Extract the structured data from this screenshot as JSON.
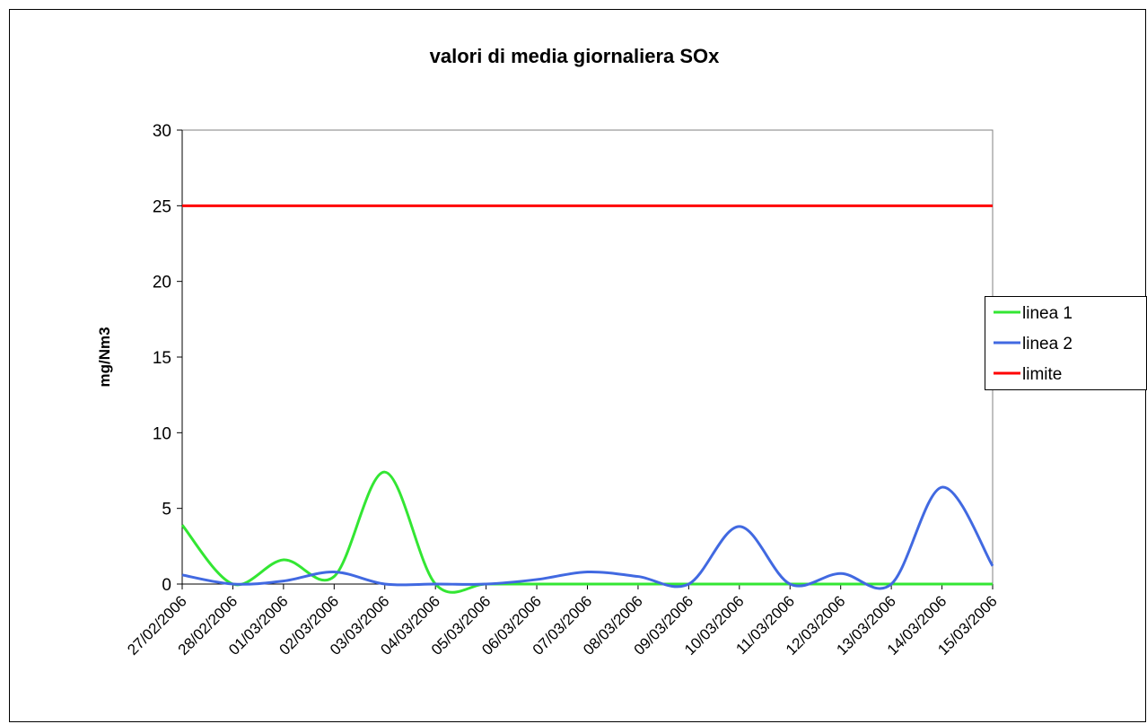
{
  "chart_data": {
    "type": "line",
    "title": "valori di media giornaliera  SOx",
    "y_label": "mg/Nm3",
    "categories": [
      "27/02/2006",
      "28/02/2006",
      "01/03/2006",
      "02/03/2006",
      "03/03/2006",
      "04/03/2006",
      "05/03/2006",
      "06/03/2006",
      "07/03/2006",
      "08/03/2006",
      "09/03/2006",
      "10/03/2006",
      "11/03/2006",
      "12/03/2006",
      "13/03/2006",
      "14/03/2006",
      "15/03/2006"
    ],
    "series": [
      {
        "name": "linea 1",
        "color": "#33e633",
        "values": [
          3.9,
          0,
          1.6,
          0.5,
          7.4,
          0,
          0,
          0,
          0,
          0,
          0,
          0,
          0,
          0,
          0,
          0,
          0
        ]
      },
      {
        "name": "linea 2",
        "color": "#4169e1",
        "values": [
          0.6,
          0,
          0.2,
          0.8,
          0,
          0,
          0,
          0.3,
          0.8,
          0.5,
          0,
          3.8,
          0,
          0.7,
          0,
          6.4,
          1.2
        ]
      },
      {
        "name": "limite",
        "color": "#ff0000",
        "values": [
          25,
          25,
          25,
          25,
          25,
          25,
          25,
          25,
          25,
          25,
          25,
          25,
          25,
          25,
          25,
          25,
          25
        ]
      }
    ],
    "ylim": [
      0,
      30
    ],
    "yticks": [
      0,
      5,
      10,
      15,
      20,
      25,
      30
    ],
    "smooth": true,
    "legend": "right",
    "grid": false
  }
}
